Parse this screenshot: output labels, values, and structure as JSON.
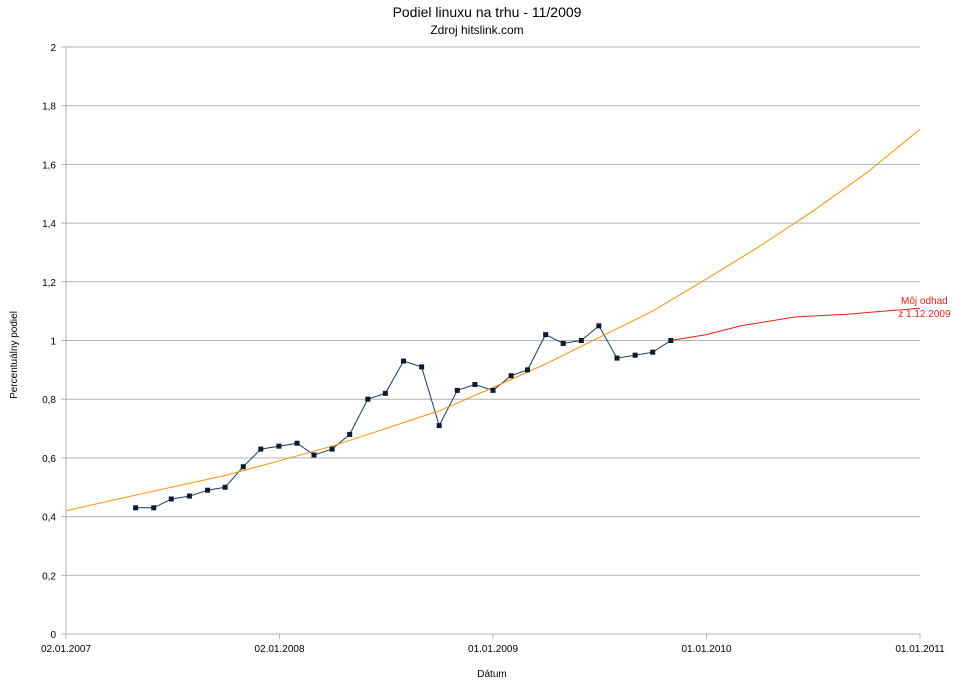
{
  "chart_data": {
    "type": "line",
    "title": "Podiel linuxu na trhu - 11/2009",
    "subtitle": "Zdroj hitslink.com",
    "xlabel": "Dátum",
    "ylabel": "Percentuálny podiel",
    "xlim": [
      "2007-01-02",
      "2011-01-01"
    ],
    "ylim": [
      0,
      2
    ],
    "y_ticks": [
      {
        "value": 0,
        "label": "0"
      },
      {
        "value": 0.2,
        "label": "0,2"
      },
      {
        "value": 0.4,
        "label": "0,4"
      },
      {
        "value": 0.6,
        "label": "0,6"
      },
      {
        "value": 0.8,
        "label": "0,8"
      },
      {
        "value": 1,
        "label": "1"
      },
      {
        "value": 1.2,
        "label": "1,2"
      },
      {
        "value": 1.4,
        "label": "1,4"
      },
      {
        "value": 1.6,
        "label": "1,6"
      },
      {
        "value": 1.8,
        "label": "1,8"
      },
      {
        "value": 2,
        "label": "2"
      }
    ],
    "x_ticks": [
      {
        "date": "2007-01-02",
        "label": "02.01.2007"
      },
      {
        "date": "2008-01-02",
        "label": "02.01.2008"
      },
      {
        "date": "2009-01-01",
        "label": "01.01.2009"
      },
      {
        "date": "2010-01-01",
        "label": "01.01.2010"
      },
      {
        "date": "2011-01-01",
        "label": "01.01.2011"
      }
    ],
    "grid": {
      "horizontal": true,
      "vertical": false
    },
    "colors": {
      "data": "#1c3c5c",
      "marker": "#0d1a30",
      "trend": "#f0930c",
      "estimate": "#e41c1c",
      "grid": "#b3b3b3",
      "axis": "#b3b3b3"
    },
    "series": [
      {
        "role": "data",
        "points": [
          {
            "x": "2007-05-01",
            "y": 0.43
          },
          {
            "x": "2007-06-01",
            "y": 0.43
          },
          {
            "x": "2007-07-01",
            "y": 0.46
          },
          {
            "x": "2007-08-01",
            "y": 0.47
          },
          {
            "x": "2007-09-01",
            "y": 0.49
          },
          {
            "x": "2007-10-01",
            "y": 0.5
          },
          {
            "x": "2007-11-01",
            "y": 0.57
          },
          {
            "x": "2007-12-01",
            "y": 0.63
          },
          {
            "x": "2008-01-01",
            "y": 0.64
          },
          {
            "x": "2008-02-01",
            "y": 0.65
          },
          {
            "x": "2008-03-01",
            "y": 0.61
          },
          {
            "x": "2008-04-01",
            "y": 0.63
          },
          {
            "x": "2008-05-01",
            "y": 0.68
          },
          {
            "x": "2008-06-01",
            "y": 0.8
          },
          {
            "x": "2008-07-01",
            "y": 0.82
          },
          {
            "x": "2008-08-01",
            "y": 0.93
          },
          {
            "x": "2008-09-01",
            "y": 0.91
          },
          {
            "x": "2008-10-01",
            "y": 0.71
          },
          {
            "x": "2008-11-01",
            "y": 0.83
          },
          {
            "x": "2008-12-01",
            "y": 0.85
          },
          {
            "x": "2009-01-01",
            "y": 0.83
          },
          {
            "x": "2009-02-01",
            "y": 0.88
          },
          {
            "x": "2009-03-01",
            "y": 0.9
          },
          {
            "x": "2009-04-01",
            "y": 1.02
          },
          {
            "x": "2009-05-01",
            "y": 0.99
          },
          {
            "x": "2009-06-01",
            "y": 1.0
          },
          {
            "x": "2009-07-01",
            "y": 1.05
          },
          {
            "x": "2009-08-01",
            "y": 0.94
          },
          {
            "x": "2009-09-01",
            "y": 0.95
          },
          {
            "x": "2009-10-01",
            "y": 0.96
          },
          {
            "x": "2009-11-01",
            "y": 1.0
          }
        ]
      },
      {
        "role": "trend",
        "points": [
          {
            "x": "2007-01-02",
            "y": 0.42
          },
          {
            "x": "2007-04-01",
            "y": 0.46
          },
          {
            "x": "2007-07-01",
            "y": 0.5
          },
          {
            "x": "2007-10-01",
            "y": 0.54
          },
          {
            "x": "2008-01-02",
            "y": 0.59
          },
          {
            "x": "2008-04-01",
            "y": 0.64
          },
          {
            "x": "2008-07-01",
            "y": 0.7
          },
          {
            "x": "2008-10-01",
            "y": 0.76
          },
          {
            "x": "2009-01-01",
            "y": 0.84
          },
          {
            "x": "2009-04-01",
            "y": 0.92
          },
          {
            "x": "2009-07-01",
            "y": 1.01
          },
          {
            "x": "2009-10-01",
            "y": 1.1
          },
          {
            "x": "2010-01-01",
            "y": 1.21
          },
          {
            "x": "2010-04-01",
            "y": 1.32
          },
          {
            "x": "2010-07-01",
            "y": 1.44
          },
          {
            "x": "2010-10-01",
            "y": 1.57
          },
          {
            "x": "2011-01-01",
            "y": 1.72
          }
        ]
      },
      {
        "role": "estimate",
        "points": [
          {
            "x": "2009-11-01",
            "y": 1.0
          },
          {
            "x": "2010-01-01",
            "y": 1.02
          },
          {
            "x": "2010-03-01",
            "y": 1.05
          },
          {
            "x": "2010-06-01",
            "y": 1.08
          },
          {
            "x": "2010-09-01",
            "y": 1.09
          },
          {
            "x": "2011-01-01",
            "y": 1.11
          }
        ]
      }
    ],
    "annotation": {
      "lines": [
        "Môj odhad",
        "z 1.12.2009"
      ],
      "color": "#e41c1c",
      "x": "2010-10-15",
      "y": 1.07
    }
  }
}
